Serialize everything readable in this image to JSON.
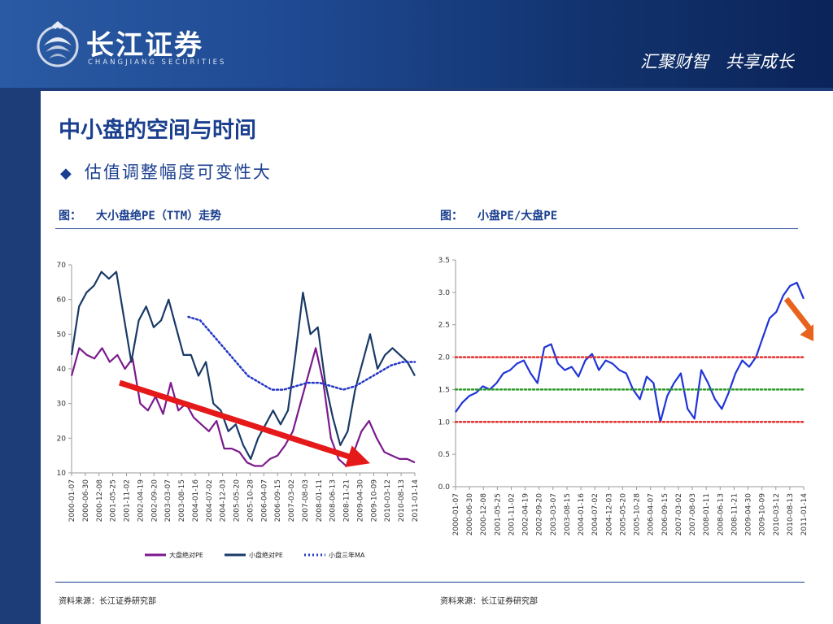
{
  "header": {
    "logo_cn": "长江证券",
    "logo_en": "CHANGJIANG SECURITIES",
    "slogan": "汇聚财智　共享成长",
    "colors": {
      "background": "#1f4a93",
      "text": "#ffffff"
    }
  },
  "slide": {
    "title": "中小盘的空间与时间",
    "bullet": "估值调整幅度可变性大",
    "colors": {
      "title": "#1b3f8f"
    }
  },
  "figures": {
    "left": {
      "label": "图：",
      "caption": "大小盘绝PE（TTM）走势",
      "source": "资料来源：长江证券研究部"
    },
    "right": {
      "label": "图：",
      "caption": "小盘PE/大盘PE",
      "source": "资料来源：长江证券研究部"
    }
  },
  "chart_data": [
    {
      "type": "line",
      "ylim": [
        10,
        70
      ],
      "yticks": [
        "70",
        "60",
        "50",
        "40",
        "30",
        "20",
        "10"
      ],
      "x_ticks": [
        "2000-01-07",
        "2000-06-30",
        "2000-12-08",
        "2001-05-25",
        "2001-11-02",
        "2002-04-19",
        "2002-09-20",
        "2003-03-07",
        "2003-08-15",
        "2004-01-16",
        "2004-07-02",
        "2004-12-03",
        "2005-05-20",
        "2005-10-28",
        "2006-04-07",
        "2006-09-15",
        "2007-03-02",
        "2007-08-03",
        "2008-01-11",
        "2008-06-13",
        "2008-11-21",
        "2009-04-30",
        "2009-10-09",
        "2010-03-12",
        "2010-08-13",
        "2011-01-14"
      ],
      "grid": false,
      "legend_position": "bottom",
      "series": [
        {
          "name": "大盘绝对PE",
          "color": "#7b1a8c",
          "style": "solid",
          "values": [
            38,
            46,
            44,
            43,
            46,
            42,
            44,
            40,
            43,
            30,
            28,
            32,
            27,
            36,
            28,
            30,
            26,
            24,
            22,
            25,
            17,
            17,
            16,
            13,
            12,
            12,
            14,
            15,
            18,
            22,
            30,
            38,
            46,
            36,
            20,
            14,
            12,
            16,
            22,
            25,
            20,
            16,
            15,
            14,
            14,
            13
          ]
        },
        {
          "name": "小盘绝对PE",
          "color": "#1a3a66",
          "style": "solid",
          "values": [
            44,
            58,
            62,
            64,
            68,
            66,
            68,
            55,
            42,
            54,
            58,
            52,
            54,
            60,
            52,
            44,
            44,
            38,
            42,
            30,
            28,
            22,
            24,
            18,
            14,
            20,
            24,
            28,
            24,
            28,
            44,
            62,
            50,
            52,
            36,
            26,
            18,
            22,
            34,
            42,
            50,
            40,
            44,
            46,
            44,
            42,
            38
          ]
        },
        {
          "name": "小盘三年MA",
          "color": "#2436c8",
          "style": "dotted",
          "x_start": 0.34,
          "values": [
            55,
            54,
            50,
            46,
            42,
            38,
            36,
            34,
            34,
            35,
            36,
            36,
            35,
            34,
            35,
            37,
            39,
            41,
            42,
            42
          ]
        }
      ],
      "annotation": {
        "type": "arrow",
        "color": "#e51919",
        "from": [
          0.14,
          36
        ],
        "to": [
          0.83,
          14
        ]
      }
    },
    {
      "type": "line",
      "ylim": [
        0,
        3.5
      ],
      "yticks": [
        "3.5",
        "3.0",
        "2.5",
        "2.0",
        "1.5",
        "1.0",
        "0.5",
        "0.0"
      ],
      "x_ticks": [
        "2000-01-07",
        "2000-06-30",
        "2000-12-08",
        "2001-05-25",
        "2001-11-02",
        "2002-04-19",
        "2002-09-20",
        "2003-03-07",
        "2003-08-15",
        "2004-01-16",
        "2004-07-02",
        "2004-12-03",
        "2005-05-20",
        "2005-10-28",
        "2006-04-07",
        "2006-09-15",
        "2007-03-02",
        "2007-08-03",
        "2008-01-11",
        "2008-06-13",
        "2008-11-21",
        "2009-04-30",
        "2009-10-09",
        "2010-03-12",
        "2010-08-13",
        "2011-01-14"
      ],
      "grid": false,
      "series": [
        {
          "name": "小盘PE/大盘PE",
          "color": "#1f34d8",
          "style": "solid",
          "values": [
            1.15,
            1.3,
            1.4,
            1.45,
            1.55,
            1.5,
            1.6,
            1.75,
            1.8,
            1.9,
            1.95,
            1.75,
            1.6,
            2.15,
            2.2,
            1.9,
            1.8,
            1.85,
            1.7,
            1.95,
            2.05,
            1.8,
            1.95,
            1.9,
            1.8,
            1.75,
            1.5,
            1.35,
            1.7,
            1.6,
            1.0,
            1.4,
            1.6,
            1.75,
            1.2,
            1.05,
            1.8,
            1.6,
            1.35,
            1.2,
            1.45,
            1.75,
            1.95,
            1.85,
            2.0,
            2.3,
            2.6,
            2.7,
            2.95,
            3.1,
            3.15,
            2.9
          ]
        },
        {
          "name": "",
          "color": "#e03030",
          "style": "dotted",
          "constant": 2.0
        },
        {
          "name": "",
          "color": "#2c9a2c",
          "style": "dotted",
          "constant": 1.5
        },
        {
          "name": "",
          "color": "#e03030",
          "style": "dotted",
          "constant": 1.0
        }
      ],
      "annotation": {
        "type": "arrow",
        "color": "#e8641e",
        "from": [
          0.95,
          2.9
        ],
        "to": [
          1.03,
          2.35
        ]
      }
    }
  ]
}
